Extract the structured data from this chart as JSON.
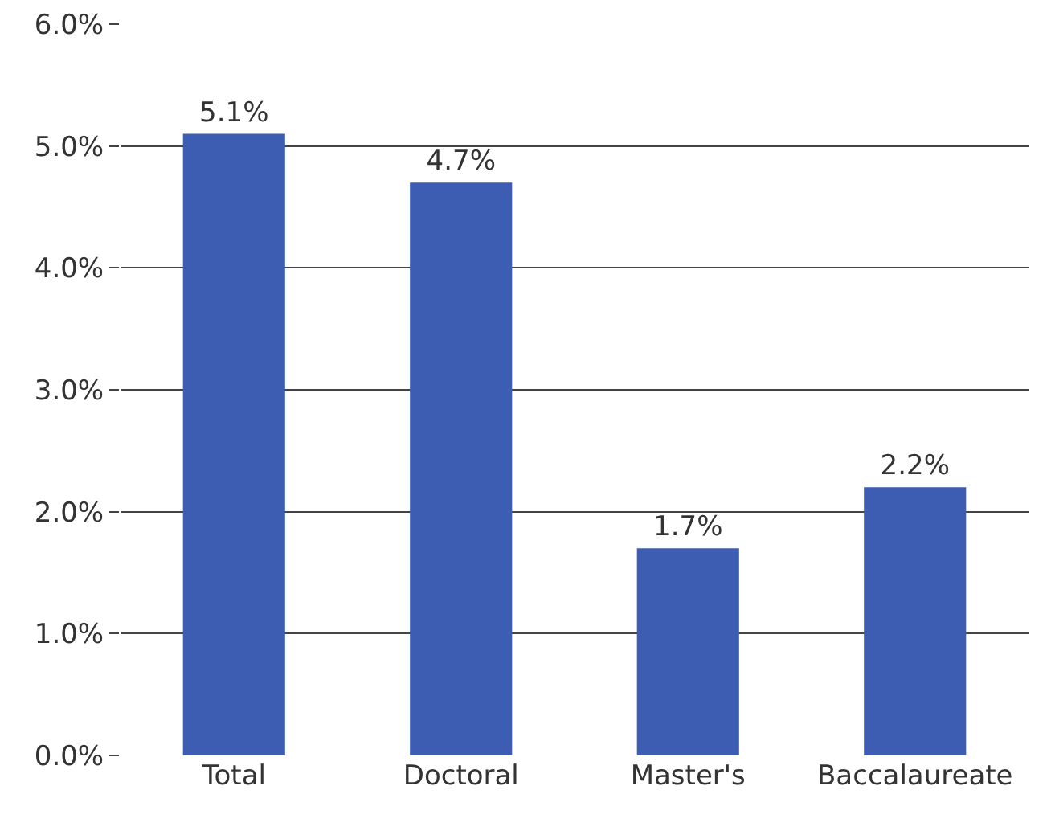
{
  "chart_data": {
    "type": "bar",
    "categories": [
      "Total",
      "Doctoral",
      "Master's",
      "Baccalaureate"
    ],
    "values": [
      5.1,
      4.7,
      1.7,
      2.2
    ],
    "value_labels": [
      "5.1%",
      "4.7%",
      "1.7%",
      "2.2%"
    ],
    "color": "#3d5db3",
    "ylim": [
      0,
      6
    ],
    "yticks": [
      {
        "value": 0,
        "label": "0.0%"
      },
      {
        "value": 1,
        "label": "1.0%"
      },
      {
        "value": 2,
        "label": "2.0%"
      },
      {
        "value": 3,
        "label": "3.0%"
      },
      {
        "value": 4,
        "label": "4.0%"
      },
      {
        "value": 5,
        "label": "5.0%"
      },
      {
        "value": 6,
        "label": "6.0%"
      }
    ],
    "grid": "y"
  }
}
